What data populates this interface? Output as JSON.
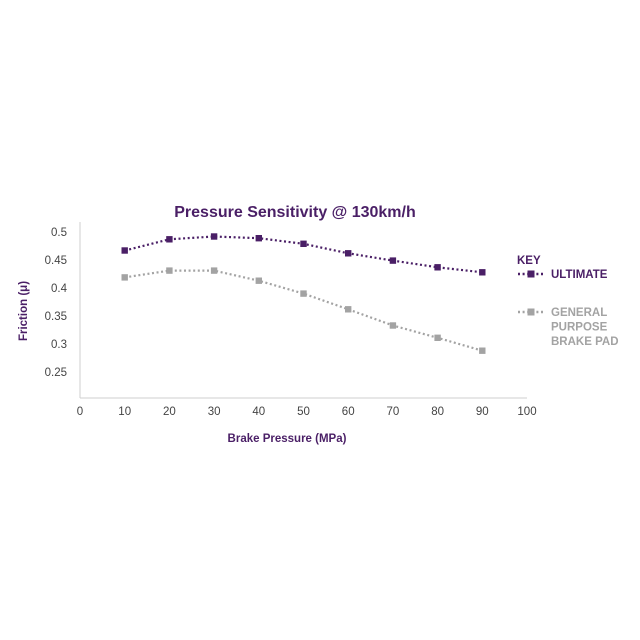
{
  "colors": {
    "ultimate": "#4a1f66",
    "general": "#a3a3a3",
    "axis": "#cfcfcf",
    "title": "#4a1f66",
    "tick": "#444444"
  },
  "chart_data": {
    "type": "line",
    "title": "Pressure Sensitivity @ 130km/h",
    "xlabel": "Brake Pressure (MPa)",
    "ylabel": "Friction (μ)",
    "xlim": [
      0,
      100
    ],
    "ylim": [
      0.2,
      0.5
    ],
    "x_ticks": [
      "0",
      "10",
      "20",
      "30",
      "40",
      "50",
      "60",
      "70",
      "80",
      "90",
      "100"
    ],
    "y_ticks": [
      "0.25",
      "0.3",
      "0.35",
      "0.4",
      "0.45",
      "0.5"
    ],
    "legend_title": "KEY",
    "legend_position": "right",
    "series": [
      {
        "name": "ULTIMATE",
        "label_lines": [
          "ULTIMATE"
        ],
        "x": [
          10,
          20,
          30,
          40,
          50,
          60,
          70,
          80,
          90
        ],
        "values": [
          0.467,
          0.487,
          0.492,
          0.489,
          0.479,
          0.462,
          0.449,
          0.437,
          0.428
        ]
      },
      {
        "name": "GENERAL PURPOSE BRAKE PAD",
        "label_lines": [
          "GENERAL",
          "PURPOSE",
          "BRAKE PAD"
        ],
        "x": [
          10,
          20,
          30,
          40,
          50,
          60,
          70,
          80,
          90
        ],
        "values": [
          0.419,
          0.431,
          0.431,
          0.413,
          0.39,
          0.362,
          0.333,
          0.311,
          0.288
        ]
      }
    ]
  }
}
